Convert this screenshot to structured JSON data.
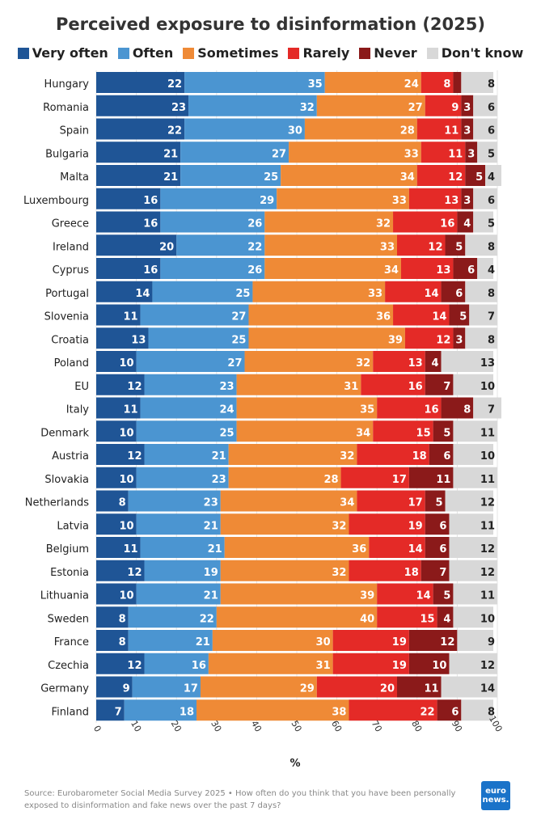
{
  "chart_data": {
    "type": "bar",
    "orientation": "horizontal",
    "stacked": true,
    "title": "Perceived exposure to disinformation (2025)",
    "xlabel": "%",
    "xlim": [
      0,
      100
    ],
    "xticks": [
      0,
      10,
      20,
      30,
      40,
      50,
      60,
      70,
      80,
      90,
      100
    ],
    "categories": [
      "Hungary",
      "Romania",
      "Spain",
      "Bulgaria",
      "Malta",
      "Luxembourg",
      "Greece",
      "Ireland",
      "Cyprus",
      "Portugal",
      "Slovenia",
      "Croatia",
      "Poland",
      "EU",
      "Italy",
      "Denmark",
      "Austria",
      "Slovakia",
      "Netherlands",
      "Latvia",
      "Belgium",
      "Estonia",
      "Lithuania",
      "Sweden",
      "France",
      "Czechia",
      "Germany",
      "Finland"
    ],
    "series": [
      {
        "name": "Very often",
        "color": "#1f5596",
        "values": [
          22,
          23,
          22,
          21,
          21,
          16,
          16,
          20,
          16,
          14,
          11,
          13,
          10,
          12,
          11,
          10,
          12,
          10,
          8,
          10,
          11,
          12,
          10,
          8,
          8,
          12,
          9,
          7
        ]
      },
      {
        "name": "Often",
        "color": "#4b95d1",
        "values": [
          35,
          32,
          30,
          27,
          25,
          29,
          26,
          22,
          26,
          25,
          27,
          25,
          27,
          23,
          24,
          25,
          21,
          23,
          23,
          21,
          21,
          19,
          21,
          22,
          21,
          16,
          17,
          18
        ]
      },
      {
        "name": "Sometimes",
        "color": "#ef8a36",
        "values": [
          24,
          27,
          28,
          33,
          34,
          33,
          32,
          33,
          34,
          33,
          36,
          39,
          32,
          31,
          35,
          34,
          32,
          28,
          34,
          32,
          36,
          32,
          39,
          40,
          30,
          31,
          29,
          38
        ]
      },
      {
        "name": "Rarely",
        "color": "#e42a27",
        "values": [
          8,
          9,
          11,
          11,
          12,
          13,
          16,
          12,
          13,
          14,
          14,
          12,
          13,
          16,
          16,
          15,
          18,
          17,
          17,
          19,
          14,
          18,
          14,
          15,
          19,
          19,
          20,
          22
        ]
      },
      {
        "name": "Never",
        "color": "#8b1a1a",
        "values": [
          2,
          3,
          3,
          3,
          5,
          3,
          4,
          5,
          6,
          6,
          5,
          3,
          4,
          7,
          8,
          5,
          6,
          11,
          5,
          6,
          6,
          7,
          5,
          4,
          12,
          10,
          11,
          6
        ]
      },
      {
        "name": "Don't know",
        "color": "#d8d8d8",
        "values": [
          8,
          6,
          6,
          5,
          4,
          6,
          5,
          8,
          4,
          8,
          7,
          8,
          13,
          10,
          7,
          11,
          10,
          11,
          12,
          11,
          12,
          12,
          11,
          10,
          9,
          12,
          14,
          8
        ]
      }
    ],
    "hidden_labels": {
      "Never": [
        0
      ]
    }
  },
  "source_text": "Source: Eurobarometer Social Media Survey 2025 • How often do you think that you have been personally exposed to disinformation and fake news over the past 7 days?",
  "logo": {
    "line1": "euro",
    "line2": "news."
  }
}
